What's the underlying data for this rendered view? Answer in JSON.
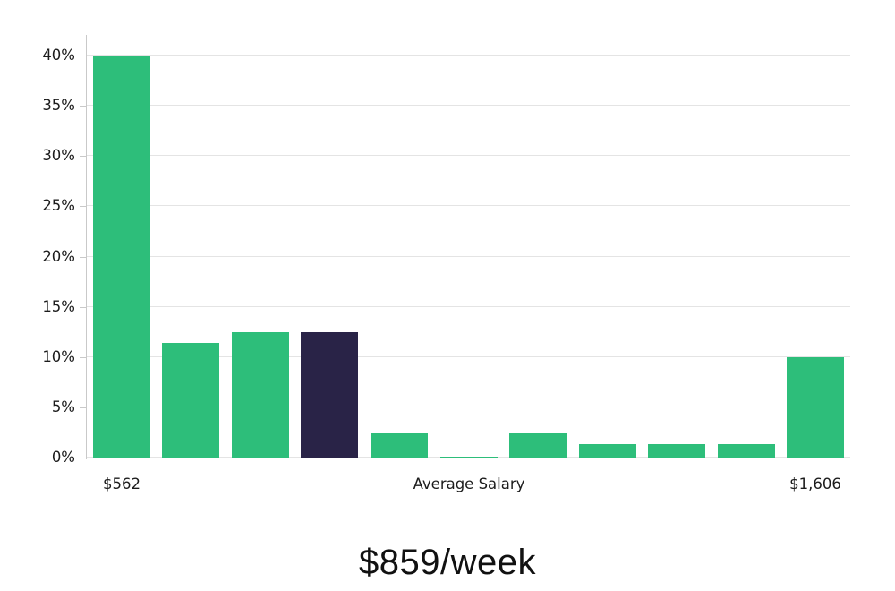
{
  "chart_data": {
    "type": "bar",
    "title": "$859/week",
    "xlabel": "",
    "ylabel": "",
    "ylim": [
      0,
      40
    ],
    "grid": true,
    "legend": null,
    "values": [
      40,
      11.4,
      12.5,
      12.5,
      2.5,
      0.1,
      2.5,
      1.3,
      1.3,
      1.3,
      10
    ],
    "highlight_index": 3,
    "y_ticks": [
      {
        "label": "0%",
        "value": 0
      },
      {
        "label": "5%",
        "value": 5
      },
      {
        "label": "10%",
        "value": 10
      },
      {
        "label": "15%",
        "value": 15
      },
      {
        "label": "20%",
        "value": 20
      },
      {
        "label": "25%",
        "value": 25
      },
      {
        "label": "30%",
        "value": 30
      },
      {
        "label": "35%",
        "value": 35
      },
      {
        "label": "40%",
        "value": 40
      }
    ],
    "x_labels": {
      "left": "$562",
      "center": "Average Salary",
      "right": "$1,606"
    },
    "colors": {
      "bar": "#2dbe7a",
      "highlight": "#292347",
      "grid": "#e4e4e4",
      "axis": "#c9c9c9",
      "text": "#1c1c1c"
    }
  }
}
